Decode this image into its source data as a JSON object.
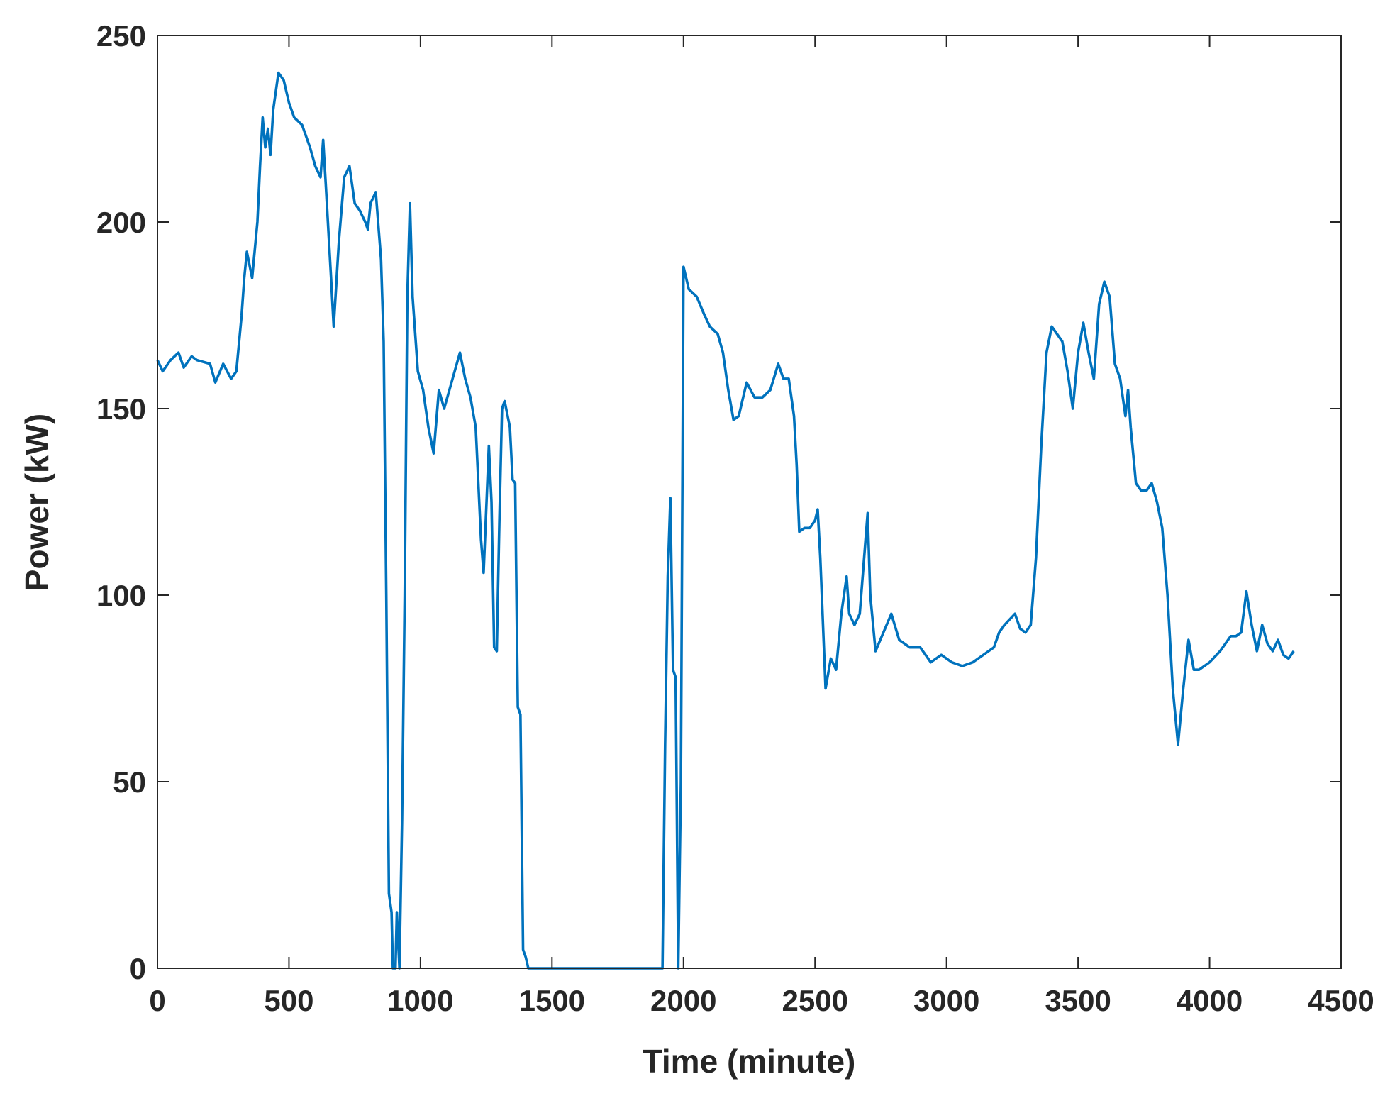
{
  "chart_data": {
    "type": "line",
    "xlabel": "Time (minute)",
    "ylabel": "Power (kW)",
    "color": "#0072bd",
    "xlim": [
      0,
      4500
    ],
    "xticks": [
      0,
      500,
      1000,
      1500,
      2000,
      2500,
      3000,
      3500,
      4000,
      4500
    ],
    "ylim": [
      0,
      250
    ],
    "yticks": [
      0,
      50,
      100,
      150,
      200,
      250
    ],
    "grid": false,
    "x": [
      0,
      20,
      50,
      80,
      100,
      130,
      150,
      200,
      220,
      250,
      280,
      300,
      320,
      330,
      340,
      360,
      380,
      390,
      400,
      410,
      420,
      430,
      440,
      460,
      480,
      500,
      520,
      550,
      580,
      600,
      620,
      630,
      640,
      660,
      670,
      690,
      710,
      730,
      750,
      770,
      790,
      800,
      810,
      830,
      850,
      860,
      870,
      880,
      890,
      895,
      905,
      910,
      920,
      930,
      940,
      950,
      960,
      970,
      990,
      1010,
      1030,
      1050,
      1070,
      1090,
      1110,
      1130,
      1150,
      1170,
      1190,
      1210,
      1230,
      1240,
      1260,
      1270,
      1280,
      1290,
      1300,
      1310,
      1320,
      1340,
      1350,
      1360,
      1370,
      1380,
      1390,
      1400,
      1410,
      1500,
      1700,
      1900,
      1920,
      1930,
      1940,
      1950,
      1960,
      1970,
      1980,
      1990,
      2000,
      2020,
      2050,
      2080,
      2100,
      2130,
      2150,
      2170,
      2190,
      2210,
      2240,
      2270,
      2300,
      2330,
      2360,
      2380,
      2400,
      2420,
      2430,
      2440,
      2460,
      2480,
      2500,
      2510,
      2520,
      2540,
      2560,
      2580,
      2600,
      2620,
      2630,
      2650,
      2670,
      2700,
      2710,
      2730,
      2760,
      2790,
      2820,
      2860,
      2900,
      2940,
      2980,
      3020,
      3060,
      3100,
      3140,
      3180,
      3200,
      3220,
      3260,
      3280,
      3300,
      3320,
      3340,
      3360,
      3380,
      3400,
      3420,
      3440,
      3460,
      3480,
      3500,
      3520,
      3540,
      3560,
      3580,
      3600,
      3620,
      3640,
      3660,
      3680,
      3690,
      3700,
      3720,
      3740,
      3760,
      3780,
      3800,
      3820,
      3840,
      3860,
      3880,
      3900,
      3920,
      3940,
      3960,
      4000,
      4040,
      4080,
      4100,
      4120,
      4140,
      4160,
      4180,
      4200,
      4220,
      4240,
      4260,
      4280,
      4300,
      4320
    ],
    "values": [
      163,
      160,
      163,
      165,
      161,
      164,
      163,
      162,
      157,
      162,
      158,
      160,
      175,
      185,
      192,
      185,
      200,
      215,
      228,
      220,
      225,
      218,
      230,
      240,
      238,
      232,
      228,
      226,
      220,
      215,
      212,
      222,
      210,
      185,
      172,
      195,
      212,
      215,
      205,
      203,
      200,
      198,
      205,
      208,
      190,
      168,
      100,
      20,
      15,
      0,
      0,
      15,
      0,
      40,
      100,
      180,
      205,
      180,
      160,
      155,
      145,
      138,
      155,
      150,
      155,
      160,
      165,
      158,
      153,
      145,
      115,
      106,
      140,
      125,
      86,
      85,
      120,
      150,
      152,
      145,
      131,
      130,
      70,
      68,
      5,
      3,
      0,
      0,
      0,
      0,
      0,
      60,
      105,
      126,
      80,
      78,
      0,
      50,
      188,
      182,
      180,
      175,
      172,
      170,
      165,
      155,
      147,
      148,
      157,
      153,
      153,
      155,
      162,
      158,
      158,
      148,
      135,
      117,
      118,
      118,
      120,
      123,
      110,
      75,
      83,
      80,
      95,
      105,
      95,
      92,
      95,
      122,
      100,
      85,
      90,
      95,
      88,
      86,
      86,
      82,
      84,
      82,
      81,
      82,
      84,
      86,
      90,
      92,
      95,
      91,
      90,
      92,
      110,
      140,
      165,
      172,
      170,
      168,
      160,
      150,
      165,
      173,
      165,
      158,
      178,
      184,
      180,
      162,
      158,
      148,
      155,
      145,
      130,
      128,
      128,
      130,
      125,
      118,
      100,
      75,
      60,
      75,
      88,
      80,
      80,
      82,
      85,
      89,
      89,
      90,
      101,
      92,
      85,
      92,
      87,
      85,
      88,
      84,
      83,
      85
    ]
  }
}
